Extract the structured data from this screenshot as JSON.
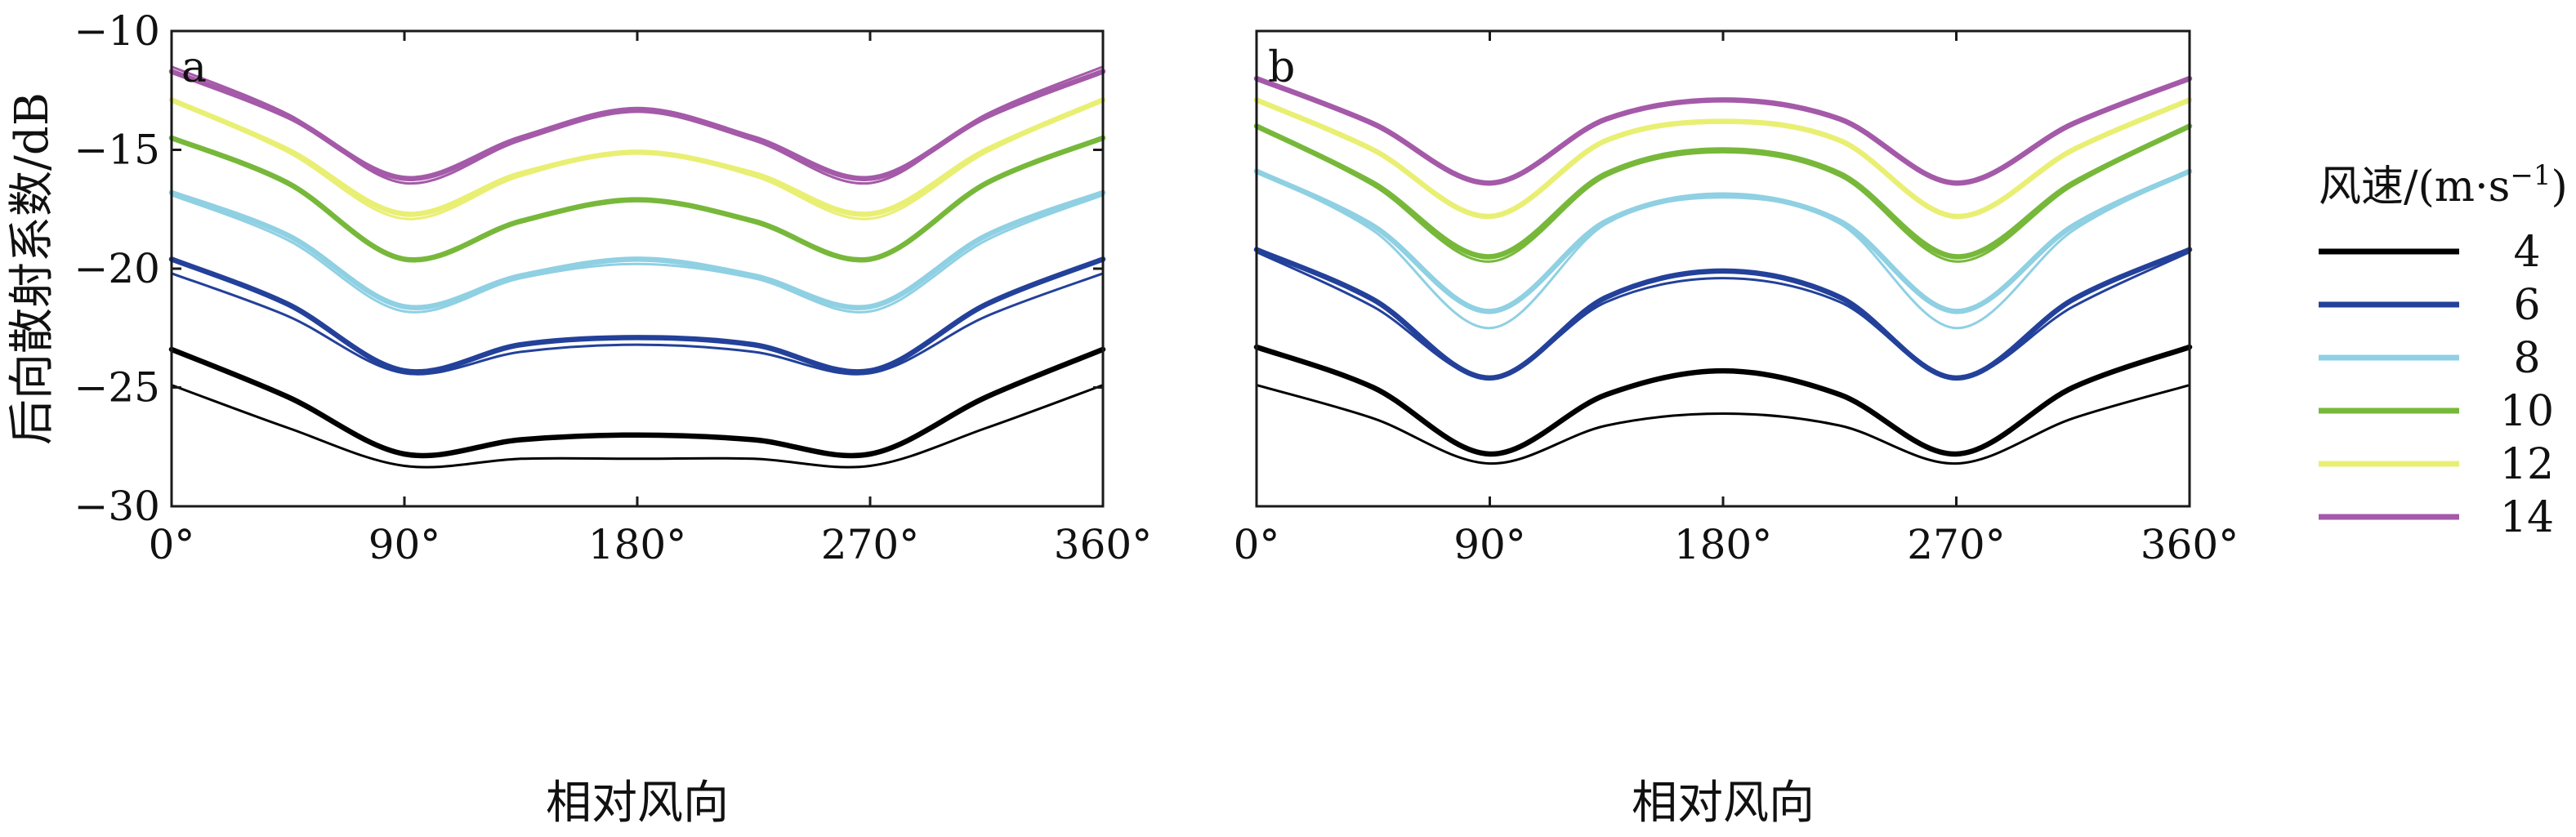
{
  "chart_data": [
    {
      "panel": "a",
      "type": "line",
      "xlabel": "相对风向",
      "ylabel": "后向散射系数/dB",
      "xlim": [
        0,
        360
      ],
      "ylim": [
        -30,
        -10
      ],
      "xticks": [
        0,
        90,
        180,
        270,
        360
      ],
      "xtick_labels": [
        "0°",
        "90°",
        "180°",
        "270°",
        "360°"
      ],
      "yticks": [
        -30,
        -25,
        -20,
        -15,
        -10
      ],
      "ytick_labels": [
        "−30",
        "−25",
        "−20",
        "−15",
        "−10"
      ],
      "x": [
        0,
        45,
        90,
        135,
        180,
        225,
        270,
        315,
        360
      ],
      "series": [
        {
          "name": "4",
          "variant": "thick",
          "color": "#000000",
          "values": [
            -23.4,
            -25.4,
            -27.8,
            -27.2,
            -27.0,
            -27.2,
            -27.8,
            -25.4,
            -23.4
          ]
        },
        {
          "name": "4",
          "variant": "thin",
          "color": "#000000",
          "values": [
            -24.9,
            -26.7,
            -28.3,
            -28.0,
            -28.0,
            -28.0,
            -28.3,
            -26.7,
            -24.9
          ]
        },
        {
          "name": "6",
          "variant": "thick",
          "color": "#23419a",
          "values": [
            -19.6,
            -21.5,
            -24.3,
            -23.2,
            -22.9,
            -23.2,
            -24.3,
            -21.5,
            -19.6
          ]
        },
        {
          "name": "6",
          "variant": "thin",
          "color": "#23419a",
          "values": [
            -20.2,
            -22.0,
            -24.4,
            -23.5,
            -23.2,
            -23.5,
            -24.4,
            -22.0,
            -20.2
          ]
        },
        {
          "name": "8",
          "variant": "thick",
          "color": "#8fd0e3",
          "values": [
            -16.8,
            -18.6,
            -21.6,
            -20.3,
            -19.6,
            -20.3,
            -21.6,
            -18.6,
            -16.8
          ]
        },
        {
          "name": "8",
          "variant": "thin",
          "color": "#8fd0e3",
          "values": [
            -16.9,
            -18.8,
            -21.8,
            -20.4,
            -19.8,
            -20.4,
            -21.8,
            -18.8,
            -16.9
          ]
        },
        {
          "name": "10",
          "variant": "thick",
          "color": "#77b83a",
          "values": [
            -14.5,
            -16.4,
            -19.6,
            -18.0,
            -17.1,
            -18.0,
            -19.6,
            -16.4,
            -14.5
          ]
        },
        {
          "name": "12",
          "variant": "thick",
          "color": "#e9ef73",
          "values": [
            -12.9,
            -15.0,
            -17.7,
            -16.0,
            -15.1,
            -16.0,
            -17.7,
            -15.0,
            -12.9
          ]
        },
        {
          "name": "12",
          "variant": "thin",
          "color": "#e9ef73",
          "values": [
            -12.9,
            -15.1,
            -17.9,
            -16.1,
            -15.1,
            -16.1,
            -17.9,
            -15.1,
            -12.9
          ]
        },
        {
          "name": "14",
          "variant": "thick",
          "color": "#a45aa8",
          "values": [
            -11.7,
            -13.6,
            -16.2,
            -14.5,
            -13.3,
            -14.5,
            -16.2,
            -13.6,
            -11.7
          ]
        },
        {
          "name": "14",
          "variant": "thin",
          "color": "#a45aa8",
          "values": [
            -11.5,
            -13.5,
            -16.4,
            -14.6,
            -13.4,
            -14.6,
            -16.4,
            -13.5,
            -11.5
          ]
        }
      ]
    },
    {
      "panel": "b",
      "type": "line",
      "xlabel": "相对风向",
      "ylabel": "",
      "xlim": [
        0,
        360
      ],
      "ylim": [
        -30,
        -10
      ],
      "xticks": [
        0,
        90,
        180,
        270,
        360
      ],
      "xtick_labels": [
        "0°",
        "90°",
        "180°",
        "270°",
        "360°"
      ],
      "yticks": [],
      "ytick_labels": [],
      "x": [
        0,
        45,
        90,
        135,
        180,
        225,
        270,
        315,
        360
      ],
      "series": [
        {
          "name": "4",
          "variant": "thick",
          "color": "#000000",
          "values": [
            -23.3,
            -25.0,
            -27.8,
            -25.3,
            -24.3,
            -25.3,
            -27.8,
            -25.0,
            -23.3
          ]
        },
        {
          "name": "4",
          "variant": "thin",
          "color": "#000000",
          "values": [
            -24.9,
            -26.3,
            -28.2,
            -26.6,
            -26.1,
            -26.6,
            -28.2,
            -26.3,
            -24.9
          ]
        },
        {
          "name": "6",
          "variant": "thick",
          "color": "#23419a",
          "values": [
            -19.2,
            -21.3,
            -24.6,
            -21.2,
            -20.1,
            -21.2,
            -24.6,
            -21.3,
            -19.2
          ]
        },
        {
          "name": "6",
          "variant": "thin",
          "color": "#23419a",
          "values": [
            -19.3,
            -21.6,
            -24.6,
            -21.4,
            -20.4,
            -21.4,
            -24.6,
            -21.6,
            -19.3
          ]
        },
        {
          "name": "8",
          "variant": "thick",
          "color": "#8fd0e3",
          "values": [
            -15.9,
            -18.2,
            -21.8,
            -18.0,
            -16.9,
            -18.0,
            -21.8,
            -18.2,
            -15.9
          ]
        },
        {
          "name": "8",
          "variant": "thin",
          "color": "#8fd0e3",
          "values": [
            -15.9,
            -18.4,
            -22.5,
            -18.1,
            -17.0,
            -18.1,
            -22.5,
            -18.4,
            -15.9
          ]
        },
        {
          "name": "10",
          "variant": "thick",
          "color": "#77b83a",
          "values": [
            -14.0,
            -16.4,
            -19.5,
            -16.0,
            -15.0,
            -16.0,
            -19.5,
            -16.4,
            -14.0
          ]
        },
        {
          "name": "10",
          "variant": "thin",
          "color": "#77b83a",
          "values": [
            -14.0,
            -16.5,
            -19.7,
            -16.1,
            -15.1,
            -16.1,
            -19.7,
            -16.5,
            -14.0
          ]
        },
        {
          "name": "12",
          "variant": "thick",
          "color": "#e9ef73",
          "values": [
            -12.9,
            -15.0,
            -17.8,
            -14.6,
            -13.8,
            -14.6,
            -17.8,
            -15.0,
            -12.9
          ]
        },
        {
          "name": "14",
          "variant": "thick",
          "color": "#a45aa8",
          "values": [
            -12.0,
            -13.9,
            -16.4,
            -13.7,
            -12.9,
            -13.7,
            -16.4,
            -13.9,
            -12.0
          ]
        }
      ]
    }
  ],
  "figure": {
    "panel_a_label": "a",
    "panel_b_label": "b"
  },
  "legend": {
    "title_text": "风速/(m·s",
    "title_sup": "−1",
    "title_close": ")",
    "entries": [
      {
        "label": "4",
        "color": "#000000"
      },
      {
        "label": "6",
        "color": "#23419a"
      },
      {
        "label": "8",
        "color": "#8fd0e3"
      },
      {
        "label": "10",
        "color": "#77b83a"
      },
      {
        "label": "12",
        "color": "#e9ef73"
      },
      {
        "label": "14",
        "color": "#a45aa8"
      }
    ]
  }
}
